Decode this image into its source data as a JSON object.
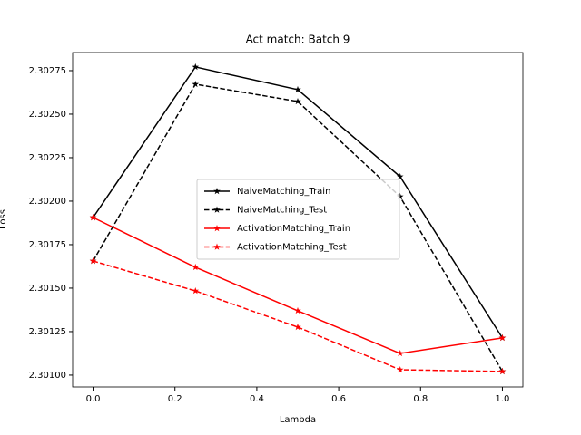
{
  "chart_data": {
    "type": "line",
    "title": "Act match: Batch 9",
    "x_label": "Lambda",
    "y_label": "Loss",
    "x": [
      0,
      0.25,
      0.5,
      0.75,
      1.0
    ],
    "series": [
      {
        "name": "NaiveMatching_Train",
        "color": "#000000",
        "linestyle": "solid",
        "values": [
          2.301906,
          2.302771,
          2.302641,
          2.302141,
          2.301214
        ]
      },
      {
        "name": "NaiveMatching_Test",
        "color": "#000000",
        "linestyle": "dashed",
        "values": [
          2.301656,
          2.302672,
          2.302573,
          2.302026,
          2.301021
        ]
      },
      {
        "name": "ActivationMatching_Train",
        "color": "#ff0000",
        "linestyle": "solid",
        "values": [
          2.301906,
          2.30162,
          2.30137,
          2.301125,
          2.301214
        ]
      },
      {
        "name": "ActivationMatching_Test",
        "color": "#ff0000",
        "linestyle": "dashed",
        "values": [
          2.301656,
          2.301484,
          2.301276,
          2.301031,
          2.301021
        ]
      }
    ],
    "xlim": [
      -0.05,
      1.05
    ],
    "xticks": [
      {
        "value": 0,
        "label": "0.0"
      },
      0.2,
      0.4,
      0.6,
      0.8,
      {
        "value": 1,
        "label": "1.0"
      }
    ],
    "ylim": [
      2.300932,
      2.302854
    ],
    "yticks": [
      {
        "value": 2.301,
        "label": "2.30100"
      },
      2.30125,
      {
        "value": 2.3015,
        "label": "2.30150"
      },
      2.30175,
      {
        "value": 2.302,
        "label": "2.30200"
      },
      2.30225,
      {
        "value": 2.3025,
        "label": "2.30250"
      },
      2.30275
    ],
    "legend_loc": "center"
  }
}
